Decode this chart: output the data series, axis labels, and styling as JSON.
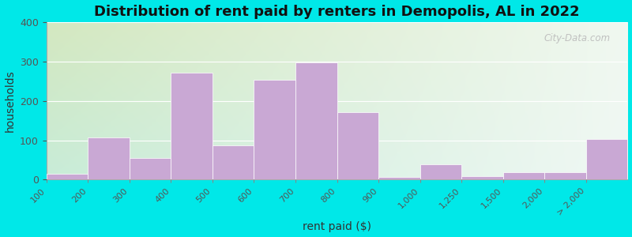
{
  "title": "Distribution of rent paid by renters in Demopolis, AL in 2022",
  "xlabel": "rent paid ($)",
  "ylabel": "households",
  "bin_labels": [
    "100",
    "200",
    "300",
    "400",
    "500",
    "600",
    "700",
    "800",
    "900",
    "1,000",
    "1,250",
    "1,500",
    "2,000",
    "> 2,000"
  ],
  "values": [
    15,
    107,
    55,
    272,
    88,
    253,
    298,
    172,
    7,
    38,
    8,
    18,
    18,
    103
  ],
  "bar_color": "#c9a8d4",
  "bg_color_topleft": "#d4e8c0",
  "bg_color_topright": "#e8f0e0",
  "bg_color_bottomleft": "#c8ecd8",
  "bg_color_bottomright": "#e8f4ec",
  "outer_bg": "#00e8e8",
  "ylim": [
    0,
    400
  ],
  "yticks": [
    0,
    100,
    200,
    300,
    400
  ],
  "title_fontsize": 13,
  "axis_label_fontsize": 10,
  "watermark_text": "City-Data.com"
}
